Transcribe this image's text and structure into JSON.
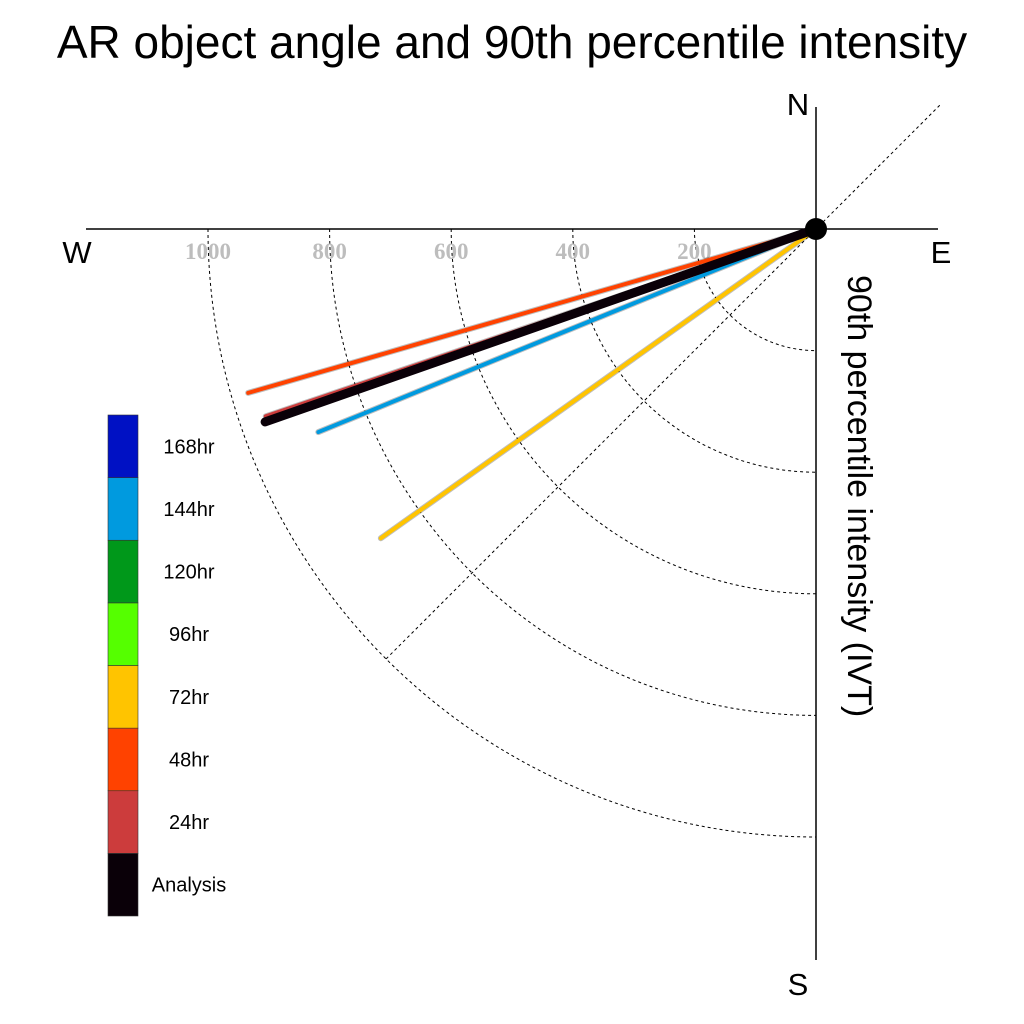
{
  "chart_data": {
    "type": "polar-vector",
    "title": "AR object angle and 90th percentile intensity",
    "radial_label": "90th percentile intensity (IVT)",
    "directions": {
      "north": "N",
      "south": "S",
      "east": "E",
      "west": "W"
    },
    "radial_ticks": [
      200,
      400,
      600,
      800,
      1000
    ],
    "rmax": 1200,
    "grid": true,
    "legend_position": "lower-left",
    "series": [
      {
        "name": "Analysis",
        "color": "#0a0008",
        "angle_deg_below_west": 19.3,
        "intensity": 960
      },
      {
        "name": "24hr",
        "color": "#cc3c3c",
        "angle_deg_below_west": 18.8,
        "intensity": 956
      },
      {
        "name": "48hr",
        "color": "#ff4200",
        "angle_deg_below_west": 16.1,
        "intensity": 972
      },
      {
        "name": "72hr",
        "color": "#ffc400",
        "angle_deg_below_west": 35.4,
        "intensity": 878
      },
      {
        "name": "96hr",
        "color": "#55ff00",
        "angle_deg_below_west": null,
        "intensity": null
      },
      {
        "name": "120hr",
        "color": "#00981a",
        "angle_deg_below_west": null,
        "intensity": null
      },
      {
        "name": "144hr",
        "color": "#009adf",
        "angle_deg_below_west": 22.2,
        "intensity": 884
      },
      {
        "name": "168hr",
        "color": "#0011c4",
        "angle_deg_below_west": null,
        "intensity": null
      }
    ]
  }
}
